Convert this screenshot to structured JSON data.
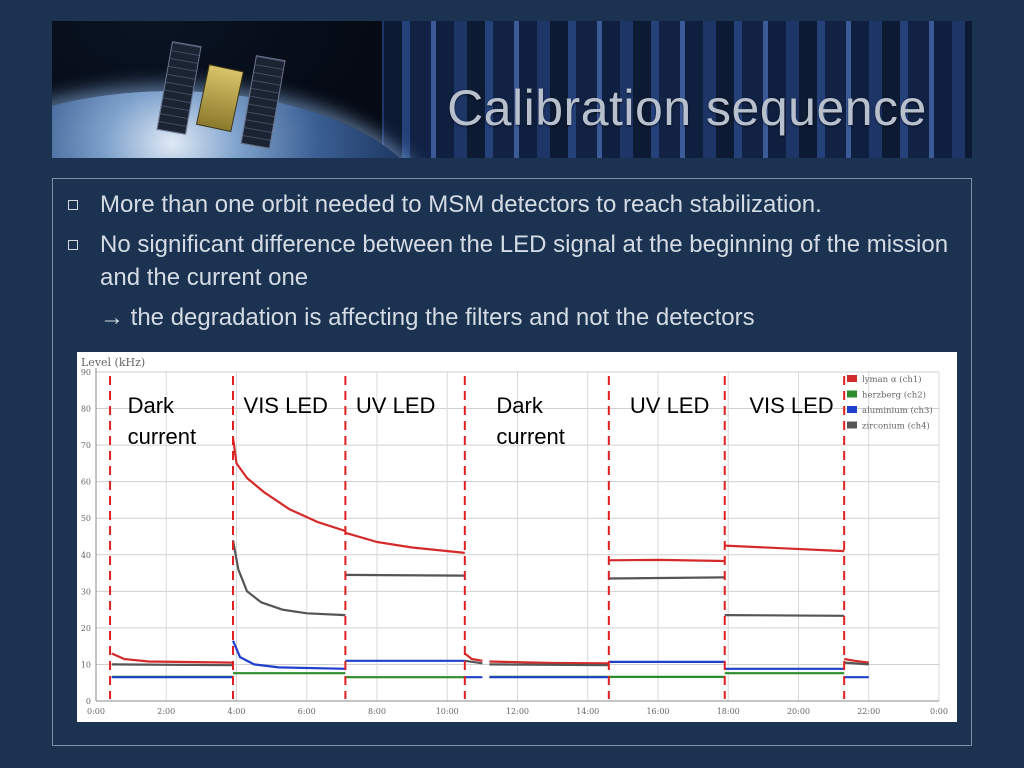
{
  "slide": {
    "title": "Calibration sequence",
    "bullets": [
      "More than one orbit needed to MSM detectors to reach stabilization.",
      "No significant difference between the LED signal at the beginning of the mission and the current one"
    ],
    "arrow_text": "→ the degradation is affecting the filters and not the detectors"
  },
  "chart_data": {
    "type": "line",
    "ylabel": "Level (kHz)",
    "ylim": [
      0,
      90
    ],
    "yticks": [
      0,
      10,
      20,
      30,
      40,
      50,
      60,
      70,
      80,
      90
    ],
    "xticks": [
      "0:00",
      "2:00",
      "4:00",
      "6:00",
      "8:00",
      "10:00",
      "12:00",
      "14:00",
      "16:00",
      "18:00",
      "20:00",
      "22:00",
      "0:00"
    ],
    "x_range_hours": [
      0,
      24
    ],
    "grid": true,
    "legend_position": "top-right",
    "series": [
      {
        "name": "lyman α (ch1)",
        "color": "#d42a2a"
      },
      {
        "name": "herzberg (ch2)",
        "color": "#2a8c2a"
      },
      {
        "name": "aluminium (ch3)",
        "color": "#1f3fcc"
      },
      {
        "name": "zirconium (ch4)",
        "color": "#555555"
      }
    ],
    "phase_boundaries_hours": [
      0.4,
      3.9,
      7.1,
      10.5,
      14.6,
      17.9,
      21.3
    ],
    "phase_labels": [
      {
        "lines": [
          "Dark",
          "current"
        ],
        "x_hours": 0.9
      },
      {
        "lines": [
          "VIS LED"
        ],
        "x_hours": 4.2
      },
      {
        "lines": [
          "UV LED"
        ],
        "x_hours": 7.4
      },
      {
        "lines": [
          "Dark",
          "current"
        ],
        "x_hours": 11.4
      },
      {
        "lines": [
          "UV LED"
        ],
        "x_hours": 15.2
      },
      {
        "lines": [
          "VIS LED"
        ],
        "x_hours": 18.6
      }
    ],
    "segments": [
      {
        "series": 0,
        "points": [
          [
            0.45,
            13
          ],
          [
            0.8,
            11.5
          ],
          [
            1.5,
            10.8
          ],
          [
            3.9,
            10.5
          ]
        ]
      },
      {
        "series": 3,
        "points": [
          [
            0.45,
            10
          ],
          [
            3.9,
            9.8
          ]
        ]
      },
      {
        "series": 1,
        "points": [
          [
            0.45,
            6.6
          ],
          [
            3.9,
            6.6
          ]
        ]
      },
      {
        "series": 2,
        "points": [
          [
            0.45,
            6.5
          ],
          [
            3.9,
            6.5
          ]
        ]
      },
      {
        "series": 0,
        "points": [
          [
            3.9,
            72
          ],
          [
            4.0,
            65
          ],
          [
            4.3,
            61
          ],
          [
            4.8,
            57
          ],
          [
            5.5,
            52.5
          ],
          [
            6.3,
            49
          ],
          [
            7.1,
            46.5
          ]
        ]
      },
      {
        "series": 3,
        "points": [
          [
            3.9,
            44
          ],
          [
            4.05,
            36
          ],
          [
            4.3,
            30
          ],
          [
            4.7,
            27
          ],
          [
            5.3,
            25
          ],
          [
            6.0,
            24
          ],
          [
            7.1,
            23.5
          ]
        ]
      },
      {
        "series": 2,
        "points": [
          [
            3.9,
            16.5
          ],
          [
            4.1,
            12
          ],
          [
            4.5,
            10
          ],
          [
            5.2,
            9.2
          ],
          [
            7.1,
            8.8
          ]
        ]
      },
      {
        "series": 1,
        "points": [
          [
            3.9,
            7.6
          ],
          [
            7.1,
            7.6
          ]
        ]
      },
      {
        "series": 0,
        "points": [
          [
            7.1,
            46
          ],
          [
            8.0,
            43.5
          ],
          [
            9.0,
            42
          ],
          [
            10.5,
            40.5
          ]
        ]
      },
      {
        "series": 3,
        "points": [
          [
            7.1,
            34.5
          ],
          [
            10.5,
            34.3
          ]
        ]
      },
      {
        "series": 2,
        "points": [
          [
            7.1,
            11
          ],
          [
            10.5,
            11
          ]
        ]
      },
      {
        "series": 1,
        "points": [
          [
            7.1,
            6.5
          ],
          [
            10.5,
            6.5
          ]
        ]
      },
      {
        "series": 0,
        "points": [
          [
            10.5,
            13
          ],
          [
            10.7,
            11.5
          ],
          [
            11.0,
            11
          ]
        ]
      },
      {
        "series": 3,
        "points": [
          [
            10.5,
            11
          ],
          [
            11.0,
            10.3
          ]
        ]
      },
      {
        "series": 2,
        "points": [
          [
            10.5,
            6.5
          ],
          [
            11.0,
            6.5
          ]
        ]
      },
      {
        "series": 0,
        "points": [
          [
            11.2,
            10.8
          ],
          [
            13,
            10.4
          ],
          [
            14.6,
            10.3
          ]
        ]
      },
      {
        "series": 3,
        "points": [
          [
            11.2,
            10
          ],
          [
            14.6,
            9.8
          ]
        ]
      },
      {
        "series": 1,
        "points": [
          [
            11.2,
            6.6
          ],
          [
            14.6,
            6.6
          ]
        ]
      },
      {
        "series": 2,
        "points": [
          [
            11.2,
            6.5
          ],
          [
            14.6,
            6.5
          ]
        ]
      },
      {
        "series": 0,
        "points": [
          [
            14.6,
            38.5
          ],
          [
            16,
            38.6
          ],
          [
            17.9,
            38.3
          ]
        ]
      },
      {
        "series": 3,
        "points": [
          [
            14.6,
            33.5
          ],
          [
            17.9,
            33.8
          ]
        ]
      },
      {
        "series": 2,
        "points": [
          [
            14.6,
            10.7
          ],
          [
            17.9,
            10.7
          ]
        ]
      },
      {
        "series": 1,
        "points": [
          [
            14.6,
            6.6
          ],
          [
            17.9,
            6.6
          ]
        ]
      },
      {
        "series": 0,
        "points": [
          [
            17.9,
            42.5
          ],
          [
            19.5,
            41.8
          ],
          [
            21.3,
            41
          ]
        ]
      },
      {
        "series": 3,
        "points": [
          [
            17.9,
            23.5
          ],
          [
            21.3,
            23.3
          ]
        ]
      },
      {
        "series": 2,
        "points": [
          [
            17.9,
            8.8
          ],
          [
            21.3,
            8.8
          ]
        ]
      },
      {
        "series": 1,
        "points": [
          [
            17.9,
            7.6
          ],
          [
            21.3,
            7.6
          ]
        ]
      },
      {
        "series": 0,
        "points": [
          [
            21.3,
            11.5
          ],
          [
            21.6,
            11
          ],
          [
            22.0,
            10.5
          ]
        ]
      },
      {
        "series": 3,
        "points": [
          [
            21.3,
            10.5
          ],
          [
            22.0,
            10
          ]
        ]
      },
      {
        "series": 2,
        "points": [
          [
            21.3,
            6.5
          ],
          [
            22.0,
            6.5
          ]
        ]
      }
    ]
  }
}
